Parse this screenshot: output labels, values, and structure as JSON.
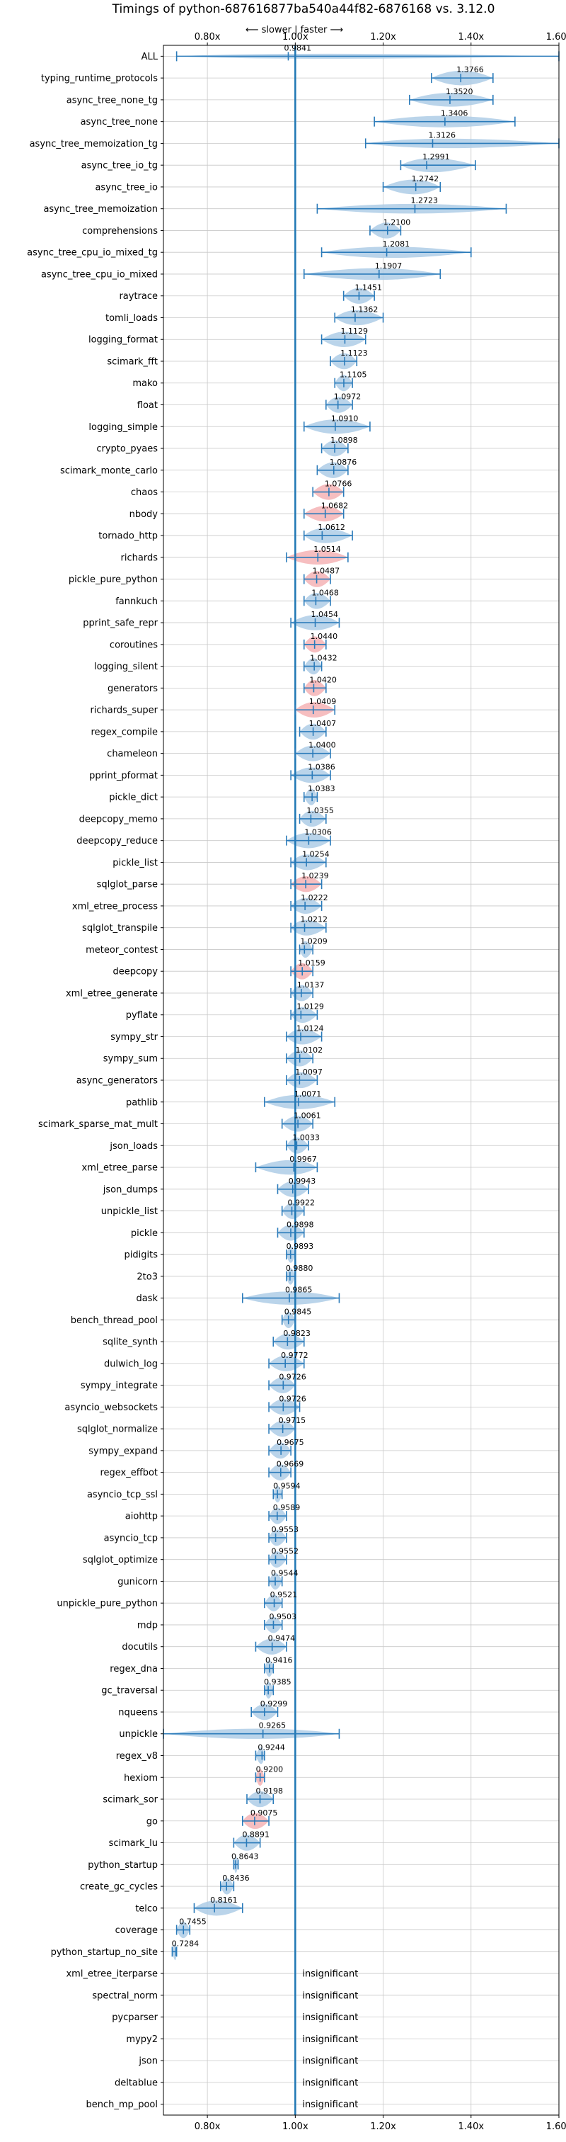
{
  "chart_data": {
    "type": "violin",
    "title": "Timings of python-687616877ba540a44f82-6876168 vs. 3.12.0",
    "direction_label": "⟵ slower | faster ⟶",
    "xlim": [
      0.7,
      1.6
    ],
    "xticks": [
      0.8,
      1.0,
      1.2,
      1.4,
      1.6
    ],
    "xtick_labels": [
      "0.80x",
      "1.00x",
      "1.20x",
      "1.40x",
      "1.60x"
    ],
    "reference_line": 1.0,
    "grid": true,
    "colors": {
      "faster_fill": "#aecde6",
      "slower_fill": "#f5b3b5",
      "marker": "#2b7bba",
      "reference": "#1f77b4",
      "grid": "#c8c8c8"
    },
    "categories": [
      "ALL",
      "typing_runtime_protocols",
      "async_tree_none_tg",
      "async_tree_none",
      "async_tree_memoization_tg",
      "async_tree_io_tg",
      "async_tree_io",
      "async_tree_memoization",
      "comprehensions",
      "async_tree_cpu_io_mixed_tg",
      "async_tree_cpu_io_mixed",
      "raytrace",
      "tomli_loads",
      "logging_format",
      "scimark_fft",
      "mako",
      "float",
      "logging_simple",
      "crypto_pyaes",
      "scimark_monte_carlo",
      "chaos",
      "nbody",
      "tornado_http",
      "richards",
      "pickle_pure_python",
      "fannkuch",
      "pprint_safe_repr",
      "coroutines",
      "logging_silent",
      "generators",
      "richards_super",
      "regex_compile",
      "chameleon",
      "pprint_pformat",
      "pickle_dict",
      "deepcopy_memo",
      "deepcopy_reduce",
      "pickle_list",
      "sqlglot_parse",
      "xml_etree_process",
      "sqlglot_transpile",
      "meteor_contest",
      "deepcopy",
      "xml_etree_generate",
      "pyflate",
      "sympy_str",
      "sympy_sum",
      "async_generators",
      "pathlib",
      "scimark_sparse_mat_mult",
      "json_loads",
      "xml_etree_parse",
      "json_dumps",
      "unpickle_list",
      "pickle",
      "pidigits",
      "2to3",
      "dask",
      "bench_thread_pool",
      "sqlite_synth",
      "dulwich_log",
      "sympy_integrate",
      "asyncio_websockets",
      "sqlglot_normalize",
      "sympy_expand",
      "regex_effbot",
      "asyncio_tcp_ssl",
      "aiohttp",
      "asyncio_tcp",
      "sqlglot_optimize",
      "gunicorn",
      "unpickle_pure_python",
      "mdp",
      "docutils",
      "regex_dna",
      "gc_traversal",
      "nqueens",
      "unpickle",
      "regex_v8",
      "hexiom",
      "scimark_sor",
      "go",
      "scimark_lu",
      "python_startup",
      "create_gc_cycles",
      "telco",
      "coverage",
      "python_startup_no_site",
      "xml_etree_iterparse",
      "spectral_norm",
      "pycparser",
      "mypy2",
      "json",
      "deltablue",
      "bench_mp_pool"
    ],
    "values": [
      0.9841,
      1.3766,
      1.352,
      1.3406,
      1.3126,
      1.2991,
      1.2742,
      1.2723,
      1.21,
      1.2081,
      1.1907,
      1.1451,
      1.1362,
      1.1129,
      1.1123,
      1.1105,
      1.0972,
      1.091,
      1.0898,
      1.0876,
      1.0766,
      1.0682,
      1.0612,
      1.0514,
      1.0487,
      1.0468,
      1.0454,
      1.044,
      1.0432,
      1.042,
      1.0409,
      1.0407,
      1.04,
      1.0386,
      1.0383,
      1.0355,
      1.0306,
      1.0254,
      1.0239,
      1.0222,
      1.0212,
      1.0209,
      1.0159,
      1.0137,
      1.0129,
      1.0124,
      1.0102,
      1.0097,
      1.0071,
      1.0061,
      1.0033,
      0.9967,
      0.9943,
      0.9922,
      0.9898,
      0.9893,
      0.988,
      0.9865,
      0.9845,
      0.9823,
      0.9772,
      0.9726,
      0.9726,
      0.9715,
      0.9675,
      0.9669,
      0.9594,
      0.9589,
      0.9553,
      0.9552,
      0.9544,
      0.9521,
      0.9503,
      0.9474,
      0.9416,
      0.9385,
      0.9299,
      0.9265,
      0.9244,
      0.92,
      0.9198,
      0.9075,
      0.8891,
      0.8643,
      0.8436,
      0.8161,
      0.7455,
      0.7284,
      null,
      null,
      null,
      null,
      null,
      null,
      null
    ],
    "value_labels": [
      "0.9841",
      "1.3766",
      "1.3520",
      "1.3406",
      "1.3126",
      "1.2991",
      "1.2742",
      "1.2723",
      "1.2100",
      "1.2081",
      "1.1907",
      "1.1451",
      "1.1362",
      "1.1129",
      "1.1123",
      "1.1105",
      "1.0972",
      "1.0910",
      "1.0898",
      "1.0876",
      "1.0766",
      "1.0682",
      "1.0612",
      "1.0514",
      "1.0487",
      "1.0468",
      "1.0454",
      "1.0440",
      "1.0432",
      "1.0420",
      "1.0409",
      "1.0407",
      "1.0400",
      "1.0386",
      "1.0383",
      "1.0355",
      "1.0306",
      "1.0254",
      "1.0239",
      "1.0222",
      "1.0212",
      "1.0209",
      "1.0159",
      "1.0137",
      "1.0129",
      "1.0124",
      "1.0102",
      "1.0097",
      "1.0071",
      "1.0061",
      "1.0033",
      "0.9967",
      "0.9943",
      "0.9922",
      "0.9898",
      "0.9893",
      "0.9880",
      "0.9865",
      "0.9845",
      "0.9823",
      "0.9772",
      "0.9726",
      "0.9726",
      "0.9715",
      "0.9675",
      "0.9669",
      "0.9594",
      "0.9589",
      "0.9553",
      "0.9552",
      "0.9544",
      "0.9521",
      "0.9503",
      "0.9474",
      "0.9416",
      "0.9385",
      "0.9299",
      "0.9265",
      "0.9244",
      "0.9200",
      "0.9198",
      "0.9075",
      "0.8891",
      "0.8643",
      "0.8436",
      "0.8161",
      "0.7455",
      "0.7284",
      "insignificant",
      "insignificant",
      "insignificant",
      "insignificant",
      "insignificant",
      "insignificant",
      "insignificant"
    ],
    "ranges": [
      [
        0.73,
        1.6
      ],
      [
        1.31,
        1.45
      ],
      [
        1.26,
        1.45
      ],
      [
        1.18,
        1.5
      ],
      [
        1.16,
        1.6
      ],
      [
        1.24,
        1.41
      ],
      [
        1.2,
        1.33
      ],
      [
        1.05,
        1.48
      ],
      [
        1.17,
        1.24
      ],
      [
        1.06,
        1.4
      ],
      [
        1.02,
        1.33
      ],
      [
        1.11,
        1.18
      ],
      [
        1.09,
        1.2
      ],
      [
        1.06,
        1.16
      ],
      [
        1.08,
        1.14
      ],
      [
        1.09,
        1.13
      ],
      [
        1.07,
        1.13
      ],
      [
        1.02,
        1.17
      ],
      [
        1.06,
        1.12
      ],
      [
        1.05,
        1.12
      ],
      [
        1.04,
        1.11
      ],
      [
        1.02,
        1.11
      ],
      [
        1.02,
        1.13
      ],
      [
        0.98,
        1.12
      ],
      [
        1.02,
        1.08
      ],
      [
        1.02,
        1.08
      ],
      [
        0.99,
        1.1
      ],
      [
        1.02,
        1.07
      ],
      [
        1.02,
        1.06
      ],
      [
        1.02,
        1.07
      ],
      [
        1.0,
        1.09
      ],
      [
        1.01,
        1.07
      ],
      [
        1.0,
        1.08
      ],
      [
        0.99,
        1.08
      ],
      [
        1.02,
        1.05
      ],
      [
        1.01,
        1.07
      ],
      [
        0.98,
        1.08
      ],
      [
        0.99,
        1.07
      ],
      [
        0.99,
        1.06
      ],
      [
        0.99,
        1.06
      ],
      [
        0.99,
        1.07
      ],
      [
        1.01,
        1.04
      ],
      [
        0.99,
        1.04
      ],
      [
        0.99,
        1.04
      ],
      [
        0.99,
        1.05
      ],
      [
        0.98,
        1.06
      ],
      [
        0.98,
        1.04
      ],
      [
        0.98,
        1.05
      ],
      [
        0.93,
        1.09
      ],
      [
        0.97,
        1.04
      ],
      [
        0.98,
        1.03
      ],
      [
        0.91,
        1.05
      ],
      [
        0.96,
        1.03
      ],
      [
        0.97,
        1.02
      ],
      [
        0.96,
        1.02
      ],
      [
        0.98,
        1.0
      ],
      [
        0.98,
        1.0
      ],
      [
        0.88,
        1.1
      ],
      [
        0.97,
        1.0
      ],
      [
        0.95,
        1.02
      ],
      [
        0.94,
        1.02
      ],
      [
        0.94,
        1.0
      ],
      [
        0.94,
        1.01
      ],
      [
        0.94,
        1.0
      ],
      [
        0.94,
        0.99
      ],
      [
        0.94,
        0.99
      ],
      [
        0.95,
        0.97
      ],
      [
        0.94,
        0.98
      ],
      [
        0.94,
        0.98
      ],
      [
        0.94,
        0.98
      ],
      [
        0.94,
        0.97
      ],
      [
        0.93,
        0.97
      ],
      [
        0.93,
        0.97
      ],
      [
        0.91,
        0.98
      ],
      [
        0.93,
        0.95
      ],
      [
        0.93,
        0.95
      ],
      [
        0.9,
        0.96
      ],
      [
        0.7,
        1.1
      ],
      [
        0.91,
        0.93
      ],
      [
        0.91,
        0.93
      ],
      [
        0.89,
        0.95
      ],
      [
        0.88,
        0.94
      ],
      [
        0.86,
        0.92
      ],
      [
        0.86,
        0.87
      ],
      [
        0.83,
        0.86
      ],
      [
        0.77,
        0.88
      ],
      [
        0.73,
        0.76
      ],
      [
        0.72,
        0.73
      ],
      null,
      null,
      null,
      null,
      null,
      null,
      null
    ]
  }
}
